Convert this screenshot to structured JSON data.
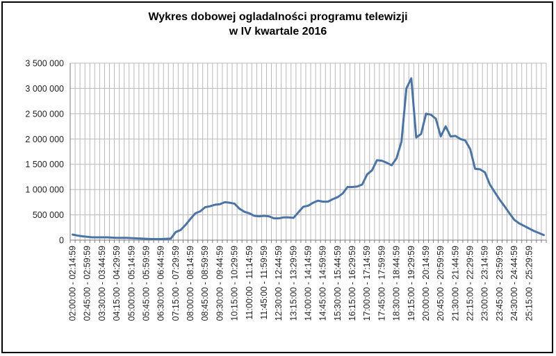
{
  "chart_data": {
    "type": "line",
    "title": [
      "Wykres dobowej ogladalności programu telewizji",
      "w IV kwartale 2016"
    ],
    "xlabel": "",
    "ylabel": "",
    "ylim": [
      0,
      3500000
    ],
    "y_ticks": [
      "0",
      "500 000",
      "1 000 000",
      "1 500 000",
      "2 000 000",
      "2 500 000",
      "3 000 000",
      "3 500 000"
    ],
    "grid": true,
    "legend": "none",
    "colors": {
      "line": "#4a74a8",
      "grid": "#b8b8b8"
    },
    "x_tick_labels": [
      "02:00:00 - 02:14:59",
      "02:45:00 - 02:59:59",
      "03:30:00 - 03:44:59",
      "04:15:00 - 04:29:59",
      "05:00:00 - 05:14:59",
      "05:45:00 - 05:59:59",
      "06:30:00 - 06:44:59",
      "07:15:00 - 07:29:59",
      "08:00:00 - 08:14:59",
      "08:45:00 - 08:59:59",
      "09:30:00 - 09:44:59",
      "10:15:00 - 10:29:59",
      "11:00:00 - 11:14:59",
      "11:45:00 - 11:59:59",
      "12:30:00 - 12:44:59",
      "13:15:00 - 13:29:59",
      "14:00:00 - 14:14:59",
      "14:45:00 - 14:59:59",
      "15:30:00 - 15:44:59",
      "16:15:00 - 16:29:59",
      "17:00:00 - 17:14:59",
      "17:45:00 - 17:59:59",
      "18:30:00 - 18:44:59",
      "19:15:00 - 19:29:59",
      "20:00:00 - 20:14:59",
      "20:45:00 - 20:59:59",
      "21:30:00 - 21:44:59",
      "22:15:00 - 22:29:59",
      "23:00:00 - 23:14:59",
      "23:45:00 - 23:59:59",
      "24:30:00 - 24:44:59",
      "25:15:00 - 25:29:59"
    ],
    "series": [
      {
        "values": [
          110000,
          90000,
          75000,
          65000,
          55000,
          55000,
          55000,
          55000,
          50000,
          45000,
          45000,
          45000,
          40000,
          35000,
          30000,
          25000,
          20000,
          20000,
          20000,
          25000,
          30000,
          160000,
          200000,
          300000,
          420000,
          530000,
          570000,
          650000,
          670000,
          700000,
          710000,
          750000,
          740000,
          720000,
          620000,
          560000,
          530000,
          480000,
          470000,
          480000,
          470000,
          430000,
          430000,
          450000,
          450000,
          440000,
          550000,
          660000,
          680000,
          740000,
          780000,
          760000,
          760000,
          810000,
          850000,
          920000,
          1050000,
          1050000,
          1060000,
          1100000,
          1300000,
          1380000,
          1580000,
          1570000,
          1530000,
          1480000,
          1620000,
          1950000,
          3000000,
          3200000,
          2030000,
          2100000,
          2500000,
          2480000,
          2400000,
          2050000,
          2250000,
          2050000,
          2060000,
          2000000,
          1970000,
          1800000,
          1410000,
          1400000,
          1340000,
          1100000,
          950000,
          800000,
          670000,
          530000,
          400000,
          330000,
          280000,
          230000,
          180000,
          140000,
          100000
        ]
      }
    ]
  }
}
